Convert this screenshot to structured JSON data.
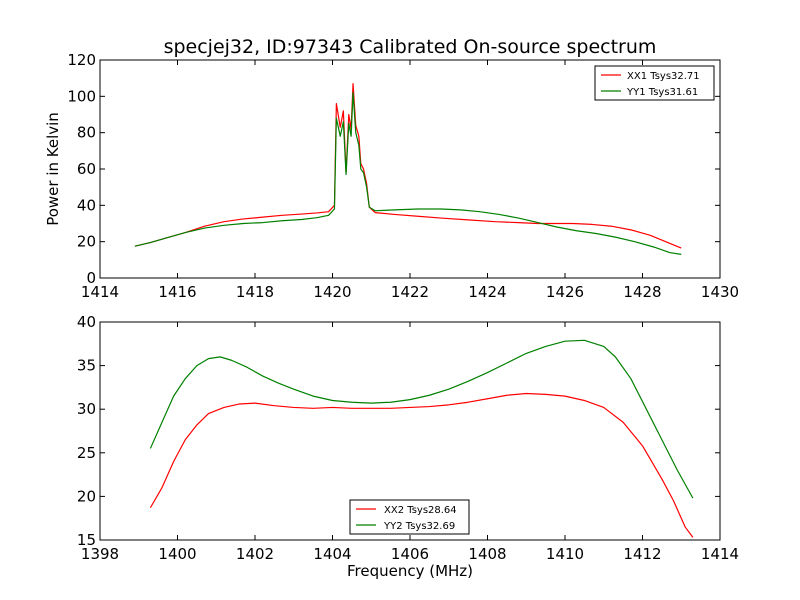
{
  "chart_data": [
    {
      "type": "line",
      "title": "specjej32, ID:97343 Calibrated On-source spectrum",
      "xlabel": "",
      "ylabel": "Power in Kelvin",
      "xlim": [
        1414,
        1430
      ],
      "ylim": [
        0,
        120
      ],
      "xticks": [
        "1414",
        "1416",
        "1418",
        "1420",
        "1422",
        "1424",
        "1426",
        "1428",
        "1430"
      ],
      "yticks": [
        "0",
        "20",
        "40",
        "60",
        "80",
        "100",
        "120"
      ],
      "grid": false,
      "legend_position": "top-right",
      "series": [
        {
          "name": "XX1 Tsys32.71",
          "color": "#ff0000",
          "points": [
            [
              1414.9,
              17.5
            ],
            [
              1415.3,
              19.5
            ],
            [
              1415.7,
              22
            ],
            [
              1416.2,
              25
            ],
            [
              1416.7,
              28.5
            ],
            [
              1417.2,
              31
            ],
            [
              1417.7,
              32.5
            ],
            [
              1418.2,
              33.5
            ],
            [
              1418.7,
              34.5
            ],
            [
              1419.2,
              35.2
            ],
            [
              1419.6,
              35.8
            ],
            [
              1419.9,
              36.5
            ],
            [
              1420.05,
              40
            ],
            [
              1420.1,
              96
            ],
            [
              1420.2,
              83
            ],
            [
              1420.28,
              92
            ],
            [
              1420.35,
              58
            ],
            [
              1420.42,
              90
            ],
            [
              1420.48,
              82
            ],
            [
              1420.53,
              107
            ],
            [
              1420.6,
              84
            ],
            [
              1420.68,
              78
            ],
            [
              1420.73,
              63
            ],
            [
              1420.8,
              60
            ],
            [
              1420.88,
              52
            ],
            [
              1420.95,
              39
            ],
            [
              1421.1,
              36
            ],
            [
              1421.6,
              35
            ],
            [
              1422.2,
              34
            ],
            [
              1422.8,
              33
            ],
            [
              1423.5,
              32
            ],
            [
              1424.2,
              31
            ],
            [
              1424.8,
              30.5
            ],
            [
              1425.3,
              30
            ],
            [
              1425.8,
              30
            ],
            [
              1426.2,
              30
            ],
            [
              1426.7,
              29.5
            ],
            [
              1427.2,
              28.5
            ],
            [
              1427.7,
              26.5
            ],
            [
              1428.2,
              23.5
            ],
            [
              1428.6,
              20
            ],
            [
              1429.0,
              16.5
            ]
          ]
        },
        {
          "name": "YY1 Tsys31.61",
          "color": "#008000",
          "points": [
            [
              1414.9,
              17.5
            ],
            [
              1415.3,
              19.5
            ],
            [
              1415.7,
              22
            ],
            [
              1416.2,
              25
            ],
            [
              1416.7,
              27.5
            ],
            [
              1417.2,
              29
            ],
            [
              1417.7,
              30
            ],
            [
              1418.2,
              30.5
            ],
            [
              1418.7,
              31.5
            ],
            [
              1419.2,
              32.2
            ],
            [
              1419.6,
              33.2
            ],
            [
              1419.9,
              34.5
            ],
            [
              1420.05,
              38
            ],
            [
              1420.1,
              88
            ],
            [
              1420.2,
              78
            ],
            [
              1420.28,
              86
            ],
            [
              1420.35,
              57
            ],
            [
              1420.42,
              85
            ],
            [
              1420.48,
              78
            ],
            [
              1420.53,
              102
            ],
            [
              1420.6,
              80
            ],
            [
              1420.68,
              73
            ],
            [
              1420.73,
              60
            ],
            [
              1420.8,
              58
            ],
            [
              1420.88,
              50
            ],
            [
              1420.95,
              39
            ],
            [
              1421.1,
              37
            ],
            [
              1421.6,
              37.5
            ],
            [
              1422.2,
              38
            ],
            [
              1422.8,
              38
            ],
            [
              1423.3,
              37.5
            ],
            [
              1423.8,
              36.5
            ],
            [
              1424.3,
              35
            ],
            [
              1424.8,
              33
            ],
            [
              1425.3,
              30.5
            ],
            [
              1425.8,
              28
            ],
            [
              1426.3,
              26
            ],
            [
              1426.8,
              24.5
            ],
            [
              1427.3,
              22.5
            ],
            [
              1427.8,
              20
            ],
            [
              1428.3,
              17
            ],
            [
              1428.7,
              14
            ],
            [
              1429.0,
              13
            ]
          ]
        }
      ]
    },
    {
      "type": "line",
      "title": "",
      "xlabel": "Frequency (MHz)",
      "ylabel": "",
      "xlim": [
        1398,
        1414
      ],
      "ylim": [
        15,
        40
      ],
      "xticks": [
        "1398",
        "1400",
        "1402",
        "1404",
        "1406",
        "1408",
        "1410",
        "1412",
        "1414"
      ],
      "yticks": [
        "15",
        "20",
        "25",
        "30",
        "35",
        "40"
      ],
      "grid": false,
      "legend_position": "bottom-center",
      "series": [
        {
          "name": "XX2 Tsys28.64",
          "color": "#ff0000",
          "points": [
            [
              1399.3,
              18.7
            ],
            [
              1399.6,
              21
            ],
            [
              1399.9,
              24
            ],
            [
              1400.2,
              26.5
            ],
            [
              1400.5,
              28.2
            ],
            [
              1400.8,
              29.5
            ],
            [
              1401.2,
              30.2
            ],
            [
              1401.6,
              30.6
            ],
            [
              1402.0,
              30.7
            ],
            [
              1402.5,
              30.4
            ],
            [
              1403.0,
              30.2
            ],
            [
              1403.5,
              30.1
            ],
            [
              1404.0,
              30.2
            ],
            [
              1404.5,
              30.1
            ],
            [
              1405.0,
              30.1
            ],
            [
              1405.5,
              30.1
            ],
            [
              1406.0,
              30.2
            ],
            [
              1406.5,
              30.3
            ],
            [
              1407.0,
              30.5
            ],
            [
              1407.5,
              30.8
            ],
            [
              1408.0,
              31.2
            ],
            [
              1408.5,
              31.6
            ],
            [
              1409.0,
              31.8
            ],
            [
              1409.5,
              31.7
            ],
            [
              1410.0,
              31.5
            ],
            [
              1410.5,
              31
            ],
            [
              1411.0,
              30.2
            ],
            [
              1411.5,
              28.5
            ],
            [
              1412.0,
              25.8
            ],
            [
              1412.5,
              22
            ],
            [
              1412.8,
              19.5
            ],
            [
              1413.1,
              16.5
            ],
            [
              1413.3,
              15.3
            ]
          ]
        },
        {
          "name": "YY2 Tsys32.69",
          "color": "#008000",
          "points": [
            [
              1399.3,
              25.5
            ],
            [
              1399.6,
              28.5
            ],
            [
              1399.9,
              31.5
            ],
            [
              1400.2,
              33.5
            ],
            [
              1400.5,
              35
            ],
            [
              1400.8,
              35.8
            ],
            [
              1401.1,
              36
            ],
            [
              1401.4,
              35.6
            ],
            [
              1401.8,
              34.8
            ],
            [
              1402.2,
              33.8
            ],
            [
              1402.6,
              33
            ],
            [
              1403.0,
              32.3
            ],
            [
              1403.5,
              31.5
            ],
            [
              1404.0,
              31
            ],
            [
              1404.5,
              30.8
            ],
            [
              1405.0,
              30.7
            ],
            [
              1405.5,
              30.8
            ],
            [
              1406.0,
              31.1
            ],
            [
              1406.5,
              31.6
            ],
            [
              1407.0,
              32.3
            ],
            [
              1407.5,
              33.2
            ],
            [
              1408.0,
              34.2
            ],
            [
              1408.5,
              35.3
            ],
            [
              1409.0,
              36.4
            ],
            [
              1409.5,
              37.2
            ],
            [
              1410.0,
              37.8
            ],
            [
              1410.5,
              37.9
            ],
            [
              1411.0,
              37.2
            ],
            [
              1411.3,
              36
            ],
            [
              1411.7,
              33.5
            ],
            [
              1412.1,
              30
            ],
            [
              1412.5,
              26.5
            ],
            [
              1412.9,
              23
            ],
            [
              1413.3,
              19.8
            ]
          ]
        }
      ]
    }
  ]
}
